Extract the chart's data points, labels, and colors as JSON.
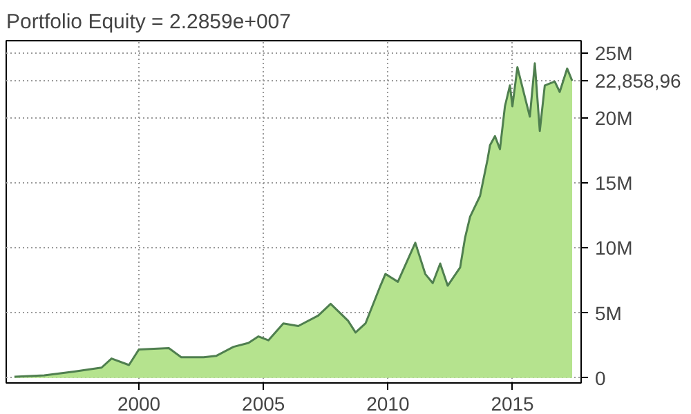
{
  "chart_data": {
    "type": "area",
    "title": "Portfolio Equity = 2.2859e+007",
    "x": [
      1995.0,
      1996.2,
      1997.4,
      1998.5,
      1998.9,
      1999.6,
      2000.0,
      2001.2,
      2001.7,
      2002.6,
      2003.1,
      2003.8,
      2004.4,
      2004.8,
      2005.2,
      2005.8,
      2006.4,
      2007.2,
      2007.7,
      2008.4,
      2008.7,
      2009.1,
      2009.7,
      2009.9,
      2010.4,
      2011.1,
      2011.5,
      2011.8,
      2012.1,
      2012.4,
      2012.9,
      2013.1,
      2013.3,
      2013.7,
      2014.0,
      2014.1,
      2014.3,
      2014.5,
      2014.7,
      2014.9,
      2015.0,
      2015.2,
      2015.7,
      2015.9,
      2016.1,
      2016.3,
      2016.7,
      2016.9,
      2017.2,
      2017.4
    ],
    "series": [
      {
        "color": "#4f7f4f",
        "values": [
          100000,
          200000,
          500000,
          800000,
          1500000,
          1000000,
          2200000,
          2300000,
          1600000,
          1600000,
          1700000,
          2400000,
          2700000,
          3200000,
          2900000,
          4200000,
          4000000,
          4800000,
          5700000,
          4400000,
          3500000,
          4200000,
          7100000,
          8000000,
          7400000,
          10400000,
          8000000,
          7300000,
          8800000,
          7100000,
          8500000,
          10800000,
          12400000,
          14000000,
          16800000,
          17900000,
          18600000,
          17600000,
          20900000,
          22500000,
          20900000,
          23900000,
          20100000,
          24200000,
          19000000,
          22500000,
          22800000,
          22000000,
          23800000,
          22858960
        ]
      }
    ],
    "xlim": [
      1994.67,
      2017.76
    ],
    "ylim": [
      -380000,
      25940000
    ],
    "xticks": [
      2000,
      2005,
      2010,
      2015
    ],
    "yticks": [
      0,
      {
        "value": 5000000,
        "label": "5M"
      },
      {
        "value": 10000000,
        "label": "10M"
      },
      {
        "value": 15000000,
        "label": "15M"
      },
      {
        "value": 20000000,
        "label": "20M"
      },
      {
        "value": 25000000,
        "label": "25M"
      }
    ],
    "annotations": [
      "22,858,96"
    ],
    "grid": true
  }
}
